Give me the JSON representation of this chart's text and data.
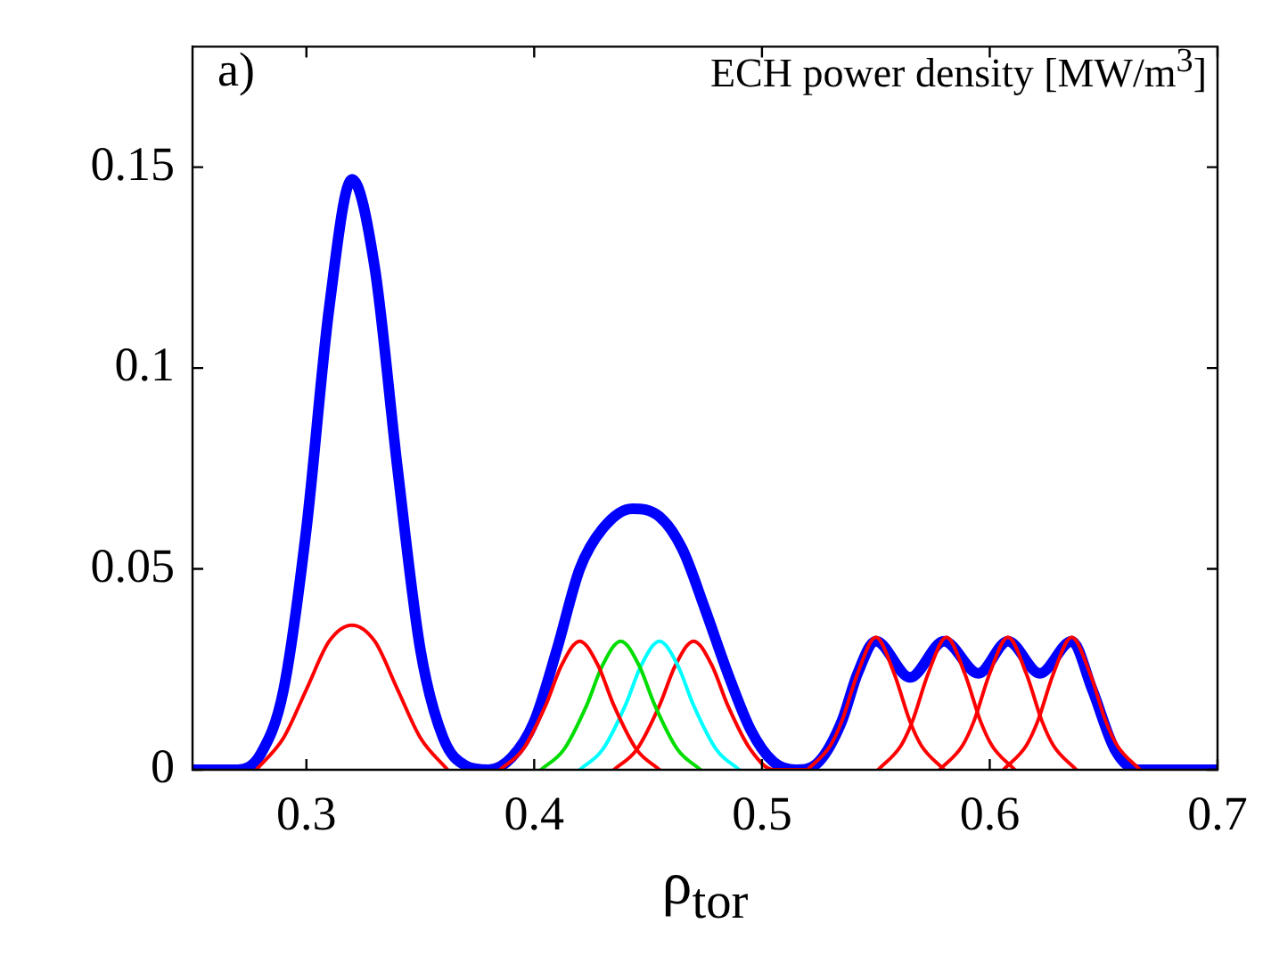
{
  "chart_data": {
    "type": "line",
    "xlabel": "ρ$_{tor}$",
    "annotations": [
      "a)",
      "ECH power density [MW/m$^{3}$]"
    ],
    "xlim": [
      0.25,
      0.7
    ],
    "ylim": [
      0,
      0.18
    ],
    "xticks": [
      0.3,
      0.4,
      0.5,
      0.6,
      0.7
    ],
    "yticks": [
      0,
      0.05,
      0.1,
      0.15
    ],
    "grid": false,
    "legend": false,
    "marker": "none",
    "line_style": "solid",
    "series": [
      {
        "color": "#ff0000",
        "x": [
          0.278,
          0.29,
          0.3,
          0.31,
          0.32,
          0.33,
          0.34,
          0.35,
          0.362
        ],
        "values": [
          0,
          0.008,
          0.02,
          0.032,
          0.036,
          0.032,
          0.02,
          0.008,
          0
        ]
      },
      {
        "color": "#ff0000",
        "x": [
          0.385,
          0.395,
          0.405,
          0.412,
          0.42,
          0.428,
          0.435,
          0.445,
          0.455
        ],
        "values": [
          0,
          0.005,
          0.016,
          0.026,
          0.032,
          0.026,
          0.016,
          0.005,
          0
        ]
      },
      {
        "color": "#00dd00",
        "x": [
          0.403,
          0.413,
          0.423,
          0.43,
          0.438,
          0.446,
          0.453,
          0.463,
          0.473
        ],
        "values": [
          0,
          0.005,
          0.016,
          0.026,
          0.032,
          0.026,
          0.016,
          0.005,
          0
        ]
      },
      {
        "color": "#00ffff",
        "x": [
          0.42,
          0.43,
          0.44,
          0.447,
          0.455,
          0.463,
          0.47,
          0.48,
          0.49
        ],
        "values": [
          0,
          0.005,
          0.016,
          0.026,
          0.032,
          0.026,
          0.016,
          0.005,
          0
        ]
      },
      {
        "color": "#ff0000",
        "x": [
          0.435,
          0.445,
          0.455,
          0.462,
          0.47,
          0.478,
          0.485,
          0.495,
          0.505,
          0.52
        ],
        "values": [
          0,
          0.005,
          0.016,
          0.026,
          0.032,
          0.026,
          0.016,
          0.005,
          0,
          0
        ]
      },
      {
        "color": "#ff0000",
        "x": [
          0.52,
          0.53,
          0.535,
          0.542,
          0.55,
          0.558,
          0.565,
          0.57,
          0.58
        ],
        "values": [
          0,
          0.006,
          0.012,
          0.024,
          0.033,
          0.024,
          0.012,
          0.006,
          0
        ]
      },
      {
        "color": "#ff0000",
        "x": [
          0.551,
          0.561,
          0.566,
          0.573,
          0.581,
          0.589,
          0.596,
          0.601,
          0.611
        ],
        "values": [
          0,
          0.006,
          0.012,
          0.024,
          0.033,
          0.024,
          0.012,
          0.006,
          0
        ]
      },
      {
        "color": "#ff0000",
        "x": [
          0.578,
          0.588,
          0.593,
          0.6,
          0.608,
          0.616,
          0.623,
          0.628,
          0.638
        ],
        "values": [
          0,
          0.006,
          0.012,
          0.024,
          0.033,
          0.024,
          0.012,
          0.006,
          0
        ]
      },
      {
        "color": "#ff0000",
        "x": [
          0.606,
          0.616,
          0.621,
          0.628,
          0.636,
          0.644,
          0.651,
          0.656,
          0.666
        ],
        "values": [
          0,
          0.006,
          0.012,
          0.024,
          0.033,
          0.024,
          0.012,
          0.006,
          0
        ]
      },
      {
        "color": "#0000ff",
        "x": [
          0.25,
          0.27,
          0.28,
          0.29,
          0.3,
          0.31,
          0.32,
          0.33,
          0.34,
          0.35,
          0.36,
          0.37,
          0.38,
          0.39,
          0.4,
          0.41,
          0.42,
          0.43,
          0.443,
          0.455,
          0.465,
          0.475,
          0.485,
          0.495,
          0.505,
          0.515,
          0.525,
          0.535,
          0.542,
          0.55,
          0.565,
          0.58,
          0.595,
          0.608,
          0.622,
          0.636,
          0.645,
          0.655,
          0.665,
          0.7
        ],
        "values": [
          0,
          0,
          0.004,
          0.02,
          0.06,
          0.115,
          0.147,
          0.125,
          0.075,
          0.03,
          0.008,
          0.001,
          0,
          0.003,
          0.012,
          0.03,
          0.05,
          0.06,
          0.065,
          0.063,
          0.055,
          0.04,
          0.024,
          0.01,
          0.002,
          0,
          0.002,
          0.012,
          0.024,
          0.032,
          0.023,
          0.032,
          0.024,
          0.032,
          0.024,
          0.032,
          0.02,
          0.005,
          0,
          0
        ]
      }
    ]
  }
}
